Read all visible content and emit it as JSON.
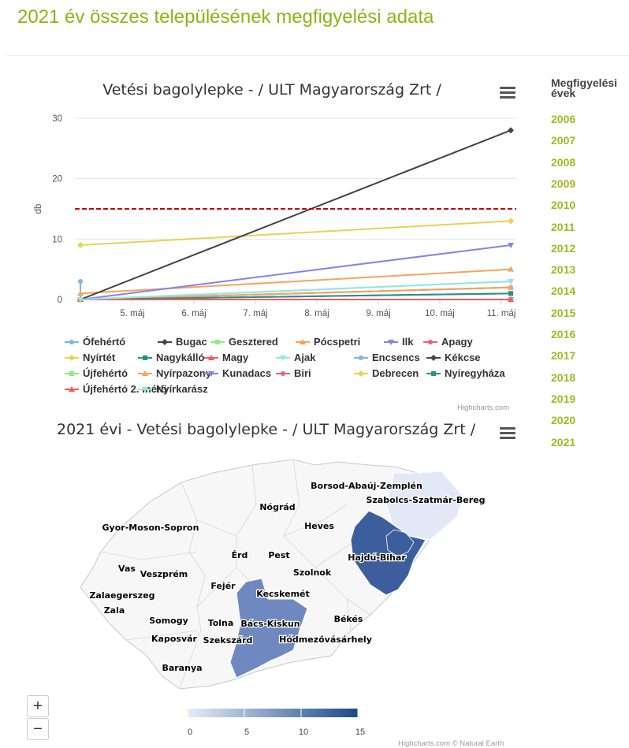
{
  "page": {
    "title": "2021 év összes településének megfigyelési adata",
    "credits": "Highcharts.com",
    "map_credits": "Highcharts.com © Natural Earth"
  },
  "years": {
    "title": "Megfigyelési évek",
    "items": [
      "2006",
      "2007",
      "2008",
      "2009",
      "2010",
      "2011",
      "2012",
      "2013",
      "2014",
      "2015",
      "2016",
      "2017",
      "2018",
      "2019",
      "2020",
      "2021"
    ]
  },
  "colors": {
    "accent": "#8bb516",
    "threshold": "#cc0000",
    "map_low": "#e8ecf8",
    "map_high": "#1b4a8a"
  },
  "chart_data": [
    {
      "type": "line",
      "title": "Vetési bagolylepke - / ULT Magyarország Zrt /",
      "ylabel": "db",
      "xlabel": "",
      "ylim": [
        0,
        30
      ],
      "yticks": [
        0,
        10,
        20,
        30
      ],
      "xlim": [
        "2021-05-04",
        "2021-05-11"
      ],
      "xticks": [
        "5. máj",
        "6. máj",
        "7. máj",
        "8. máj",
        "9. máj",
        "10. máj",
        "11. máj"
      ],
      "threshold": 15,
      "legend": "bottom",
      "series": [
        {
          "name": "Ófehértó",
          "color": "#7cb5ec",
          "marker": "circle",
          "points": [
            [
              "2021-05-04",
              3
            ],
            [
              "2021-05-04",
              0
            ]
          ]
        },
        {
          "name": "Bugac",
          "color": "#434348",
          "marker": "diamond",
          "points": [
            [
              "2021-05-04",
              0
            ],
            [
              "2021-05-11",
              0
            ]
          ]
        },
        {
          "name": "Gesztered",
          "color": "#90ed7d",
          "marker": "square",
          "points": [
            [
              "2021-05-04",
              0
            ],
            [
              "2021-05-11",
              0
            ]
          ]
        },
        {
          "name": "Pócspetri",
          "color": "#f7a35c",
          "marker": "triangle",
          "points": [
            [
              "2021-05-04",
              1
            ],
            [
              "2021-05-11",
              5
            ]
          ]
        },
        {
          "name": "Ilk",
          "color": "#8085e9",
          "marker": "triangle-down",
          "points": [
            [
              "2021-05-04",
              0
            ],
            [
              "2021-05-11",
              9
            ]
          ]
        },
        {
          "name": "Apagy",
          "color": "#f15c80",
          "marker": "circle",
          "points": [
            [
              "2021-05-04",
              0
            ],
            [
              "2021-05-11",
              0
            ]
          ]
        },
        {
          "name": "Nyírtét",
          "color": "#e4d354",
          "marker": "diamond",
          "points": [
            [
              "2021-05-04",
              9
            ],
            [
              "2021-05-11",
              13
            ]
          ]
        },
        {
          "name": "Nagykálló",
          "color": "#2b908f",
          "marker": "square",
          "points": [
            [
              "2021-05-04",
              0
            ],
            [
              "2021-05-11",
              1
            ]
          ]
        },
        {
          "name": "Magy",
          "color": "#f45b5b",
          "marker": "triangle",
          "points": [
            [
              "2021-05-04",
              0
            ],
            [
              "2021-05-11",
              2
            ]
          ]
        },
        {
          "name": "Ajak",
          "color": "#91e8e1",
          "marker": "triangle-down",
          "points": [
            [
              "2021-05-04",
              0
            ],
            [
              "2021-05-11",
              3
            ]
          ]
        },
        {
          "name": "Encsencs",
          "color": "#7cb5ec",
          "marker": "circle",
          "points": [
            [
              "2021-05-04",
              0
            ],
            [
              "2021-05-11",
              2
            ]
          ]
        },
        {
          "name": "Kékcse",
          "color": "#434348",
          "marker": "diamond",
          "points": [
            [
              "2021-05-04",
              0
            ],
            [
              "2021-05-11",
              28
            ]
          ]
        },
        {
          "name": "Újfehértó",
          "color": "#90ed7d",
          "marker": "square",
          "points": [
            [
              "2021-05-04",
              0
            ],
            [
              "2021-05-11",
              0
            ]
          ]
        },
        {
          "name": "Nyírpazony",
          "color": "#f7a35c",
          "marker": "triangle",
          "points": [
            [
              "2021-05-04",
              0
            ],
            [
              "2021-05-11",
              2
            ]
          ]
        },
        {
          "name": "Kunadacs",
          "color": "#8085e9",
          "marker": "triangle-down",
          "points": [
            [
              "2021-05-04",
              0
            ],
            [
              "2021-05-11",
              0
            ]
          ]
        },
        {
          "name": "Biri",
          "color": "#f15c80",
          "marker": "circle",
          "points": [
            [
              "2021-05-04",
              0
            ],
            [
              "2021-05-11",
              0
            ]
          ]
        },
        {
          "name": "Debrecen",
          "color": "#e4d354",
          "marker": "diamond",
          "points": [
            [
              "2021-05-04",
              0
            ],
            [
              "2021-05-11",
              0
            ]
          ]
        },
        {
          "name": "Nyíregyháza",
          "color": "#2b908f",
          "marker": "square",
          "points": [
            [
              "2021-05-04",
              0
            ],
            [
              "2021-05-11",
              1
            ]
          ]
        },
        {
          "name": "Újfehértó 2. mérő",
          "color": "#f45b5b",
          "marker": "triangle",
          "points": [
            [
              "2021-05-04",
              0
            ],
            [
              "2021-05-11",
              0
            ]
          ]
        },
        {
          "name": "Nyírkarász",
          "color": "#91e8e1",
          "marker": "triangle-down",
          "points": [
            [
              "2021-05-04",
              0
            ],
            [
              "2021-05-11",
              3
            ]
          ]
        }
      ]
    },
    {
      "type": "heatmap",
      "title": "2021 évi - Vetési bagolylepke - / ULT Magyarország Zrt /",
      "color_axis": {
        "min": 0,
        "max": 15,
        "ticks": [
          0,
          5,
          10,
          15
        ]
      },
      "labels": [
        "Borsod-Abaúj-Zemplén",
        "Szabolcs-Szatmár-Bereg",
        "Nógrád",
        "Gyor-Moson-Sopron",
        "Heves",
        "Érd",
        "Pest",
        "Hajdú-Bihar",
        "Vas",
        "Veszprém",
        "Szolnok",
        "Fejér",
        "Zalaegerszeg",
        "Kecskemét",
        "Zala",
        "Somogy",
        "Tolna",
        "Bács-Kiskun",
        "Békés",
        "Kaposvár",
        "Szekszárd",
        "Hódmezővásárhely",
        "Baranya"
      ],
      "highlighted": [
        {
          "name": "Hajdú-Bihar",
          "value": 15
        },
        {
          "name": "Bács-Kiskun",
          "value": 8
        },
        {
          "name": "Szabolcs-Szatmár-Bereg",
          "value": 1
        }
      ],
      "zoom_in": "+",
      "zoom_out": "−"
    }
  ]
}
